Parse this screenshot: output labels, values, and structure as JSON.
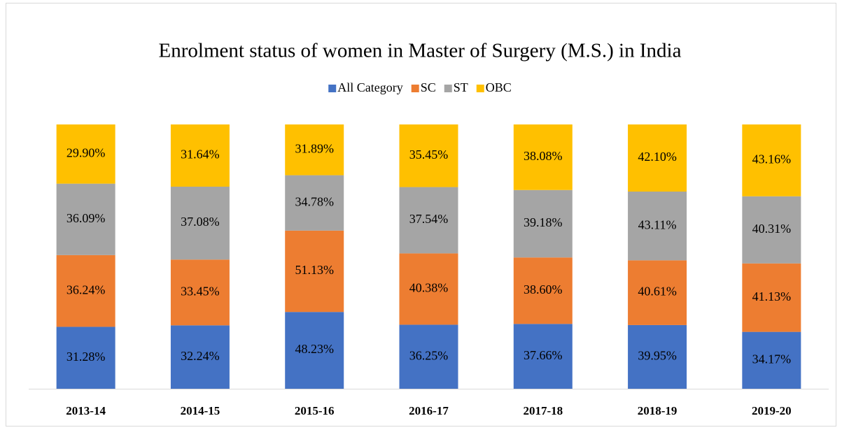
{
  "chart_data": {
    "type": "bar",
    "stack": "percent",
    "title": "Enrolment status of women in Master of Surgery (M.S.) in India",
    "legend": "top",
    "categories": [
      "2013-14",
      "2014-15",
      "2015-16",
      "2016-17",
      "2017-18",
      "2018-19",
      "2019-20"
    ],
    "series": [
      {
        "name": "All Category",
        "color": "#4472c4",
        "values": [
          31.28,
          32.24,
          48.23,
          36.25,
          37.66,
          39.95,
          34.17
        ],
        "value_labels": [
          "31.28%",
          "32.24%",
          "48.23%",
          "36.25%",
          "37.66%",
          "39.95%",
          "34.17%"
        ]
      },
      {
        "name": "SC",
        "color": "#ed7d31",
        "values": [
          36.24,
          33.45,
          51.13,
          40.38,
          38.6,
          40.61,
          41.13
        ],
        "value_labels": [
          "36.24%",
          "33.45%",
          "51.13%",
          "40.38%",
          "38.60%",
          "40.61%",
          "41.13%"
        ]
      },
      {
        "name": "ST",
        "color": "#a5a5a5",
        "values": [
          36.09,
          37.08,
          34.78,
          37.54,
          39.18,
          43.11,
          40.31
        ],
        "value_labels": [
          "36.09%",
          "37.08%",
          "34.78%",
          "37.54%",
          "39.18%",
          "43.11%",
          "40.31%"
        ]
      },
      {
        "name": "OBC",
        "color": "#ffc000",
        "values": [
          29.9,
          31.64,
          31.89,
          35.45,
          38.08,
          42.1,
          43.16
        ],
        "value_labels": [
          "29.90%",
          "31.64%",
          "31.89%",
          "35.45%",
          "38.08%",
          "42.10%",
          "43.16%"
        ]
      }
    ]
  }
}
